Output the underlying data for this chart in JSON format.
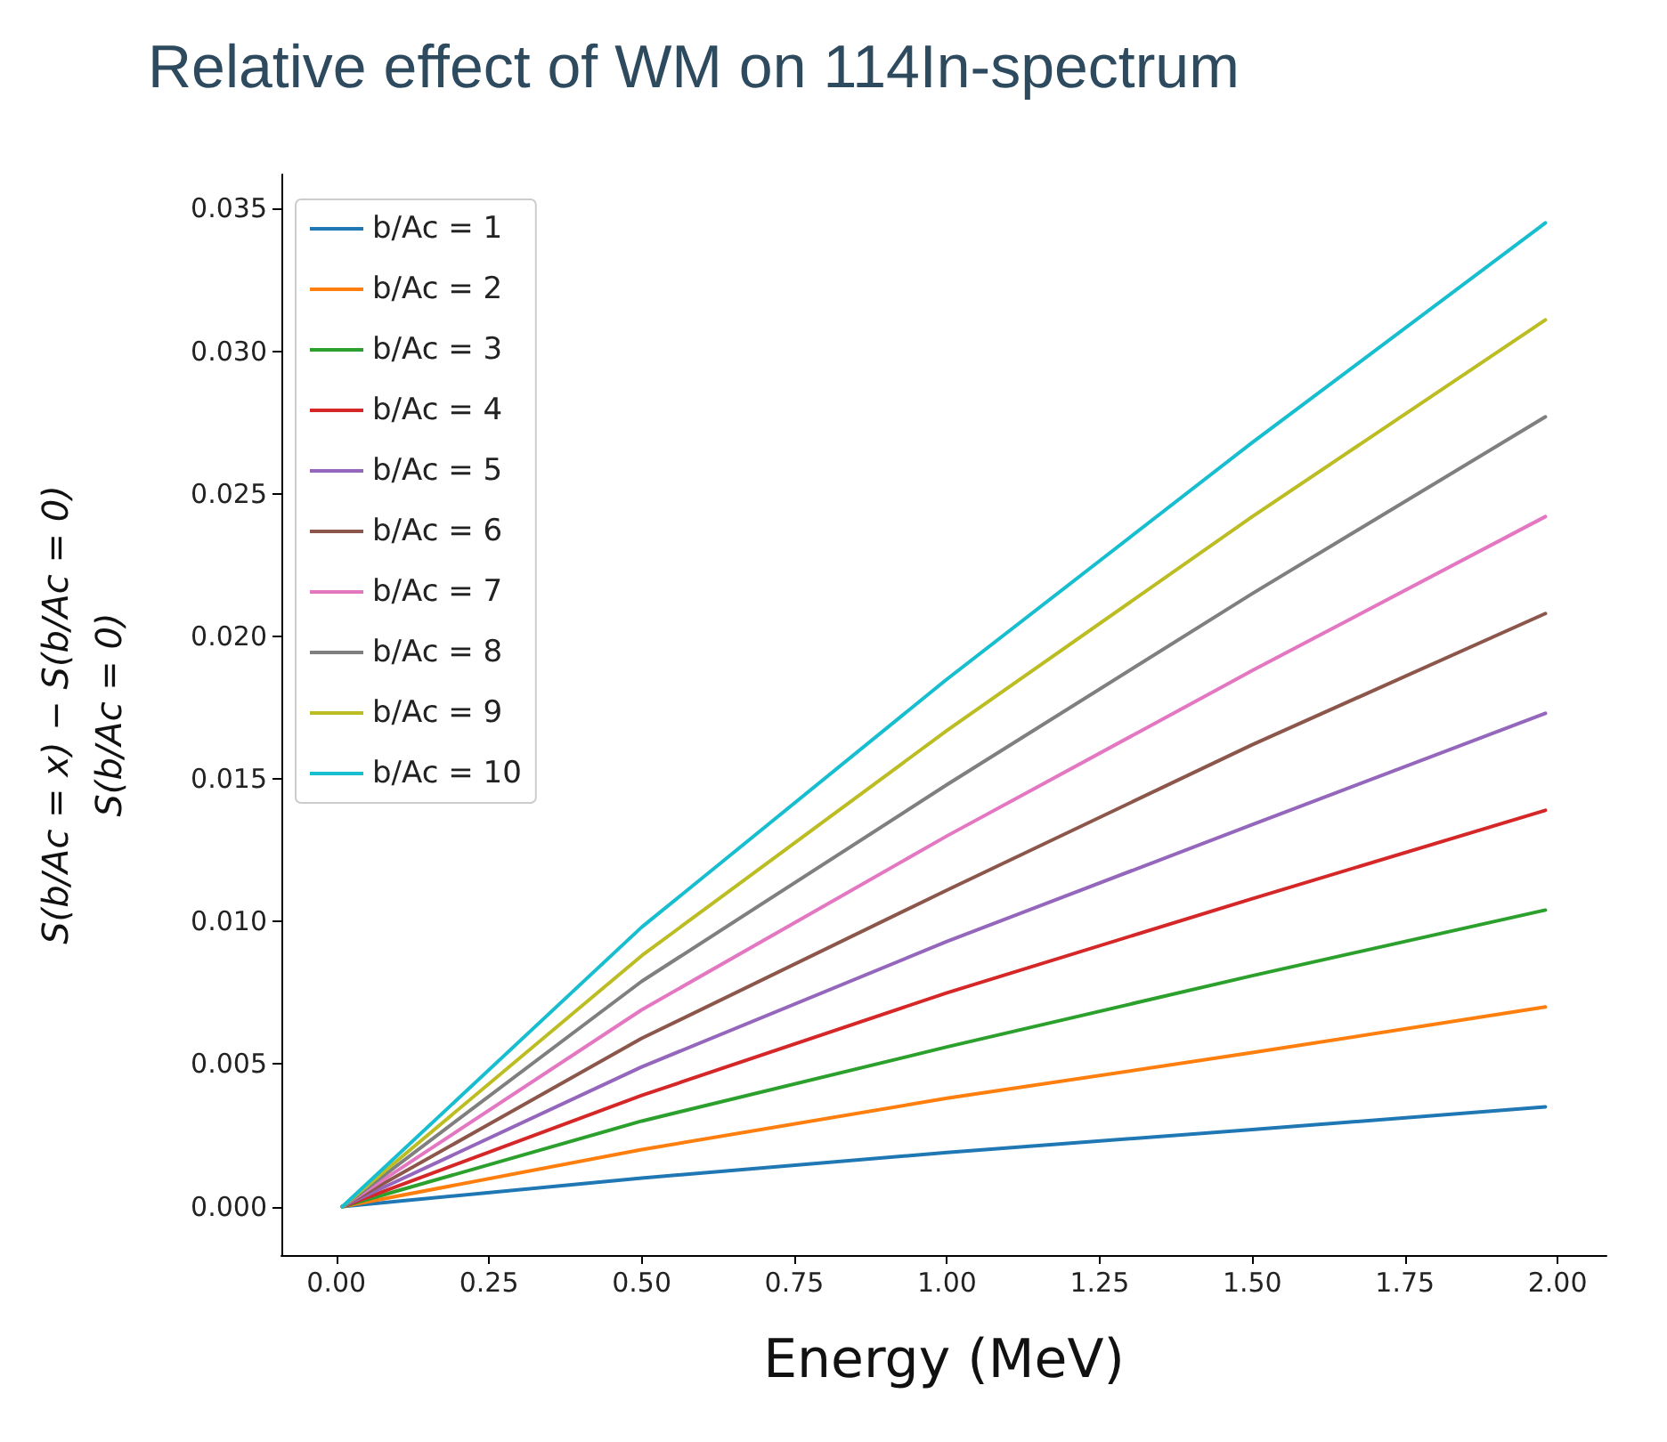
{
  "chart_data": {
    "type": "line",
    "title": "Relative effect of WM on 114In-spectrum",
    "xlabel": "Energy (MeV)",
    "ylabel": "S(b/Ac = x) − S(b/Ac = 0)\nS(b/Ac = 0)",
    "x": [
      0.01,
      0.5,
      1.0,
      1.5,
      1.98
    ],
    "series": [
      {
        "name": "b/Ac = 1",
        "color": "#1f77b4",
        "values": [
          0,
          0.001,
          0.0019,
          0.0027,
          0.0035
        ]
      },
      {
        "name": "b/Ac = 2",
        "color": "#ff7f0e",
        "values": [
          0,
          0.002,
          0.0038,
          0.0054,
          0.007
        ]
      },
      {
        "name": "b/Ac = 3",
        "color": "#2ca02c",
        "values": [
          0,
          0.003,
          0.0056,
          0.0081,
          0.0104
        ]
      },
      {
        "name": "b/Ac = 4",
        "color": "#d62728",
        "values": [
          0,
          0.0039,
          0.0075,
          0.0108,
          0.0139
        ]
      },
      {
        "name": "b/Ac = 5",
        "color": "#9467bd",
        "values": [
          0,
          0.0049,
          0.0093,
          0.0134,
          0.0173
        ]
      },
      {
        "name": "b/Ac = 6",
        "color": "#8c564b",
        "values": [
          0,
          0.0059,
          0.0111,
          0.0162,
          0.0208
        ]
      },
      {
        "name": "b/Ac = 7",
        "color": "#e377c2",
        "values": [
          0,
          0.0069,
          0.013,
          0.0188,
          0.0242
        ]
      },
      {
        "name": "b/Ac = 8",
        "color": "#7f7f7f",
        "values": [
          0,
          0.0079,
          0.0148,
          0.0215,
          0.0277
        ]
      },
      {
        "name": "b/Ac = 9",
        "color": "#bcbd22",
        "values": [
          0,
          0.0088,
          0.0167,
          0.0242,
          0.0311
        ]
      },
      {
        "name": "b/Ac = 10",
        "color": "#17becf",
        "values": [
          0,
          0.0098,
          0.0185,
          0.0268,
          0.0345
        ]
      }
    ],
    "xlim": [
      -0.09,
      2.08
    ],
    "xticks": [
      {
        "value": 0,
        "label": "0.00"
      },
      {
        "value": 0.25,
        "label": "0.25"
      },
      {
        "value": 0.5,
        "label": "0.50"
      },
      {
        "value": 0.75,
        "label": "0.75"
      },
      {
        "value": 1,
        "label": "1.00"
      },
      {
        "value": 1.25,
        "label": "1.25"
      },
      {
        "value": 1.5,
        "label": "1.50"
      },
      {
        "value": 1.75,
        "label": "1.75"
      },
      {
        "value": 2,
        "label": "2.00"
      }
    ],
    "ylim": [
      -0.0017,
      0.0362
    ],
    "yticks": [
      {
        "value": 0,
        "label": "0.000"
      },
      {
        "value": 0.005,
        "label": "0.005"
      },
      {
        "value": 0.01,
        "label": "0.010"
      },
      {
        "value": 0.015,
        "label": "0.015"
      },
      {
        "value": 0.02,
        "label": "0.020"
      },
      {
        "value": 0.025,
        "label": "0.025"
      },
      {
        "value": 0.03,
        "label": "0.030"
      },
      {
        "value": 0.035,
        "label": "0.035"
      }
    ],
    "grid": false,
    "legend": "top left",
    "marker": "none",
    "line_style": "solid"
  }
}
